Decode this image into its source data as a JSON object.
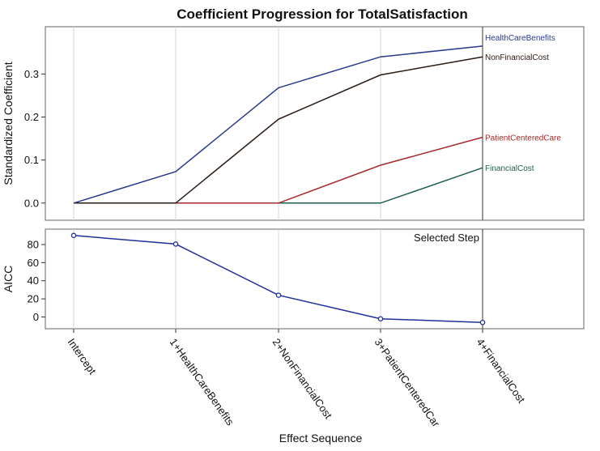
{
  "chart_data": [
    {
      "type": "line",
      "title": "Coefficient Progression for TotalSatisfaction",
      "ylabel": "Standardized Coefficient",
      "xlabel": "",
      "ylim": [
        -0.04,
        0.41
      ],
      "yticks": [
        0.0,
        0.1,
        0.2,
        0.3
      ],
      "ytick_labels": [
        "0.0",
        "0.1",
        "0.2",
        "0.3"
      ],
      "categories": [
        "Intercept",
        "1+HealthCareBenefits",
        "2+NonFinancialCost",
        "3+PatientCenteredCar",
        "4+FinancialCost"
      ],
      "grid": true,
      "series": [
        {
          "name": "HealthCareBenefits",
          "color": "#2b3b8c",
          "values": [
            0.0,
            0.073,
            0.268,
            0.34,
            0.365
          ]
        },
        {
          "name": "NonFinancialCost",
          "color": "#2a1a14",
          "values": [
            0.0,
            0.0,
            0.195,
            0.298,
            0.34
          ]
        },
        {
          "name": "PatientCenteredCare",
          "color": "#a52a2a",
          "values": [
            0.0,
            0.0,
            0.0,
            0.088,
            0.153
          ]
        },
        {
          "name": "FinancialCost",
          "color": "#1e5e52",
          "values": [
            0.0,
            0.0,
            0.0,
            0.0,
            0.082
          ]
        }
      ]
    },
    {
      "type": "line",
      "ylabel": "AICC",
      "xlabel": "Effect Sequence",
      "ylim": [
        -13,
        97
      ],
      "yticks": [
        0,
        20,
        40,
        60,
        80
      ],
      "ytick_labels": [
        "0",
        "20",
        "40",
        "60",
        "80"
      ],
      "categories": [
        "Intercept",
        "1+HealthCareBenefits",
        "2+NonFinancialCost",
        "3+PatientCenteredCar",
        "4+FinancialCost"
      ],
      "grid": true,
      "annotation": "Selected Step",
      "selected_index": 4,
      "series": [
        {
          "name": "AICC",
          "color": "#1f2f9a",
          "values": [
            90,
            80.5,
            24,
            -2,
            -6
          ]
        }
      ]
    }
  ]
}
